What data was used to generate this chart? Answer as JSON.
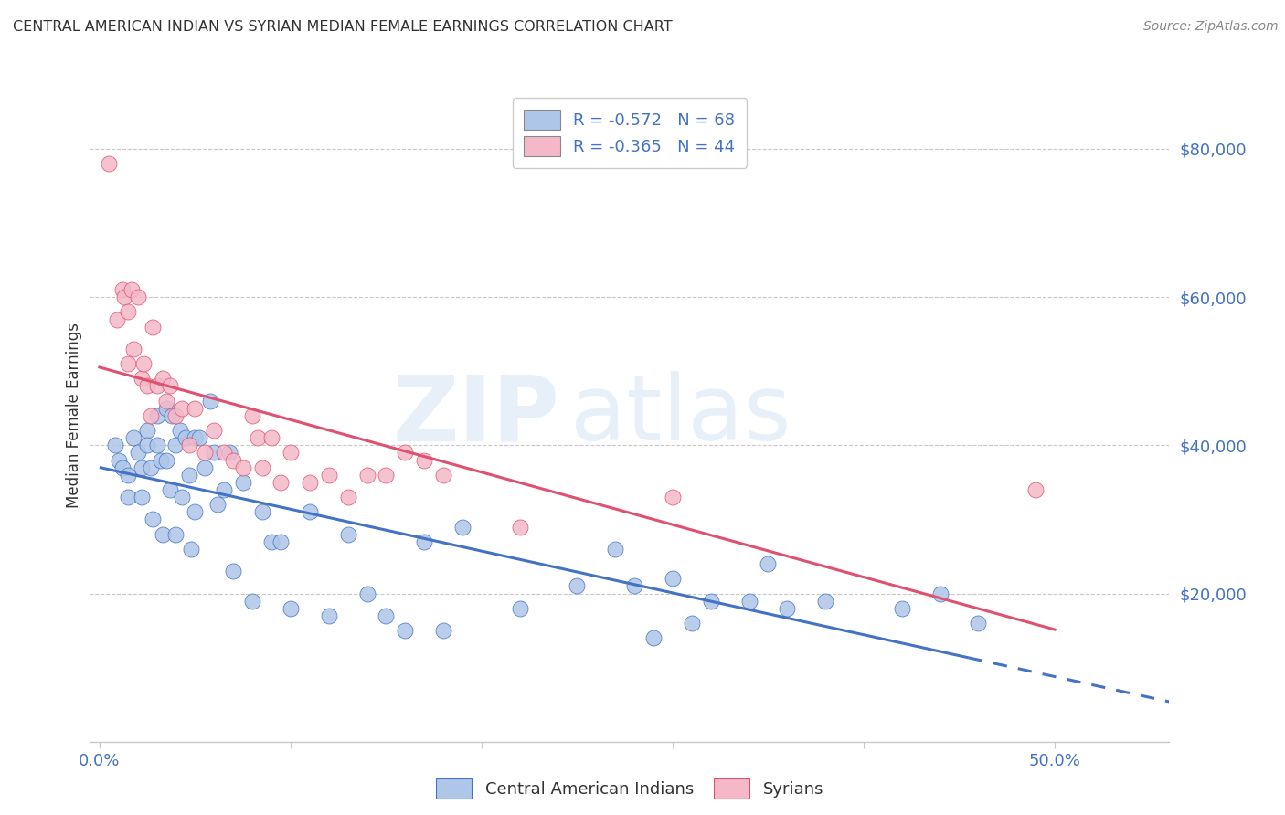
{
  "title": "CENTRAL AMERICAN INDIAN VS SYRIAN MEDIAN FEMALE EARNINGS CORRELATION CHART",
  "source": "Source: ZipAtlas.com",
  "ylabel": "Median Female Earnings",
  "watermark": "ZIPatlas",
  "legend_entries": [
    {
      "label": "R = -0.572   N = 68",
      "facecolor": "#aec6e8",
      "edgecolor": "#888888"
    },
    {
      "label": "R = -0.365   N = 44",
      "facecolor": "#f4b8c8",
      "edgecolor": "#888888"
    }
  ],
  "legend_labels_bottom": [
    "Central American Indians",
    "Syrians"
  ],
  "y_ticks": [
    0,
    20000,
    40000,
    60000,
    80000
  ],
  "y_tick_labels": [
    "",
    "$20,000",
    "$40,000",
    "$60,000",
    "$80,000"
  ],
  "x_ticks": [
    0.0,
    0.1,
    0.2,
    0.3,
    0.4,
    0.5
  ],
  "x_tick_labels": [
    "0.0%",
    "",
    "",
    "",
    "",
    "50.0%"
  ],
  "xlim": [
    -0.005,
    0.56
  ],
  "ylim": [
    0,
    88000
  ],
  "blue_scatter_x": [
    0.008,
    0.01,
    0.012,
    0.015,
    0.015,
    0.018,
    0.02,
    0.022,
    0.022,
    0.025,
    0.025,
    0.027,
    0.028,
    0.03,
    0.03,
    0.032,
    0.033,
    0.035,
    0.035,
    0.037,
    0.038,
    0.04,
    0.04,
    0.042,
    0.043,
    0.045,
    0.047,
    0.048,
    0.05,
    0.05,
    0.052,
    0.055,
    0.058,
    0.06,
    0.062,
    0.065,
    0.068,
    0.07,
    0.075,
    0.08,
    0.085,
    0.09,
    0.095,
    0.1,
    0.11,
    0.12,
    0.13,
    0.14,
    0.15,
    0.16,
    0.17,
    0.18,
    0.19,
    0.22,
    0.25,
    0.28,
    0.3,
    0.32,
    0.34,
    0.36,
    0.38,
    0.42,
    0.44,
    0.46,
    0.29,
    0.31,
    0.27,
    0.35
  ],
  "blue_scatter_y": [
    40000,
    38000,
    37000,
    36000,
    33000,
    41000,
    39000,
    37000,
    33000,
    42000,
    40000,
    37000,
    30000,
    44000,
    40000,
    38000,
    28000,
    45000,
    38000,
    34000,
    44000,
    40000,
    28000,
    42000,
    33000,
    41000,
    36000,
    26000,
    41000,
    31000,
    41000,
    37000,
    46000,
    39000,
    32000,
    34000,
    39000,
    23000,
    35000,
    19000,
    31000,
    27000,
    27000,
    18000,
    31000,
    17000,
    28000,
    20000,
    17000,
    15000,
    27000,
    15000,
    29000,
    18000,
    21000,
    21000,
    22000,
    19000,
    19000,
    18000,
    19000,
    18000,
    20000,
    16000,
    14000,
    16000,
    26000,
    24000
  ],
  "pink_scatter_x": [
    0.005,
    0.009,
    0.012,
    0.013,
    0.015,
    0.015,
    0.017,
    0.018,
    0.02,
    0.022,
    0.023,
    0.025,
    0.027,
    0.028,
    0.03,
    0.033,
    0.035,
    0.037,
    0.04,
    0.043,
    0.047,
    0.05,
    0.055,
    0.06,
    0.065,
    0.07,
    0.075,
    0.08,
    0.083,
    0.085,
    0.09,
    0.095,
    0.1,
    0.11,
    0.12,
    0.13,
    0.14,
    0.15,
    0.16,
    0.17,
    0.18,
    0.3,
    0.49,
    0.22
  ],
  "pink_scatter_y": [
    78000,
    57000,
    61000,
    60000,
    58000,
    51000,
    61000,
    53000,
    60000,
    49000,
    51000,
    48000,
    44000,
    56000,
    48000,
    49000,
    46000,
    48000,
    44000,
    45000,
    40000,
    45000,
    39000,
    42000,
    39000,
    38000,
    37000,
    44000,
    41000,
    37000,
    41000,
    35000,
    39000,
    35000,
    36000,
    33000,
    36000,
    36000,
    39000,
    38000,
    36000,
    33000,
    34000,
    29000
  ],
  "blue_line_color": "#4472c4",
  "pink_line_color": "#e05070",
  "blue_scatter_color": "#aec6e8",
  "pink_scatter_color": "#f4b8c8",
  "blue_line_solid_end": 0.455,
  "blue_line_dash_end": 0.56,
  "pink_line_end": 0.5,
  "tick_color": "#4472c4",
  "title_color": "#333333",
  "source_color": "#888888",
  "grid_color": "#c8c8c8",
  "background_color": "#ffffff",
  "watermark_color": "#c5d8f0",
  "watermark_alpha": 0.4
}
